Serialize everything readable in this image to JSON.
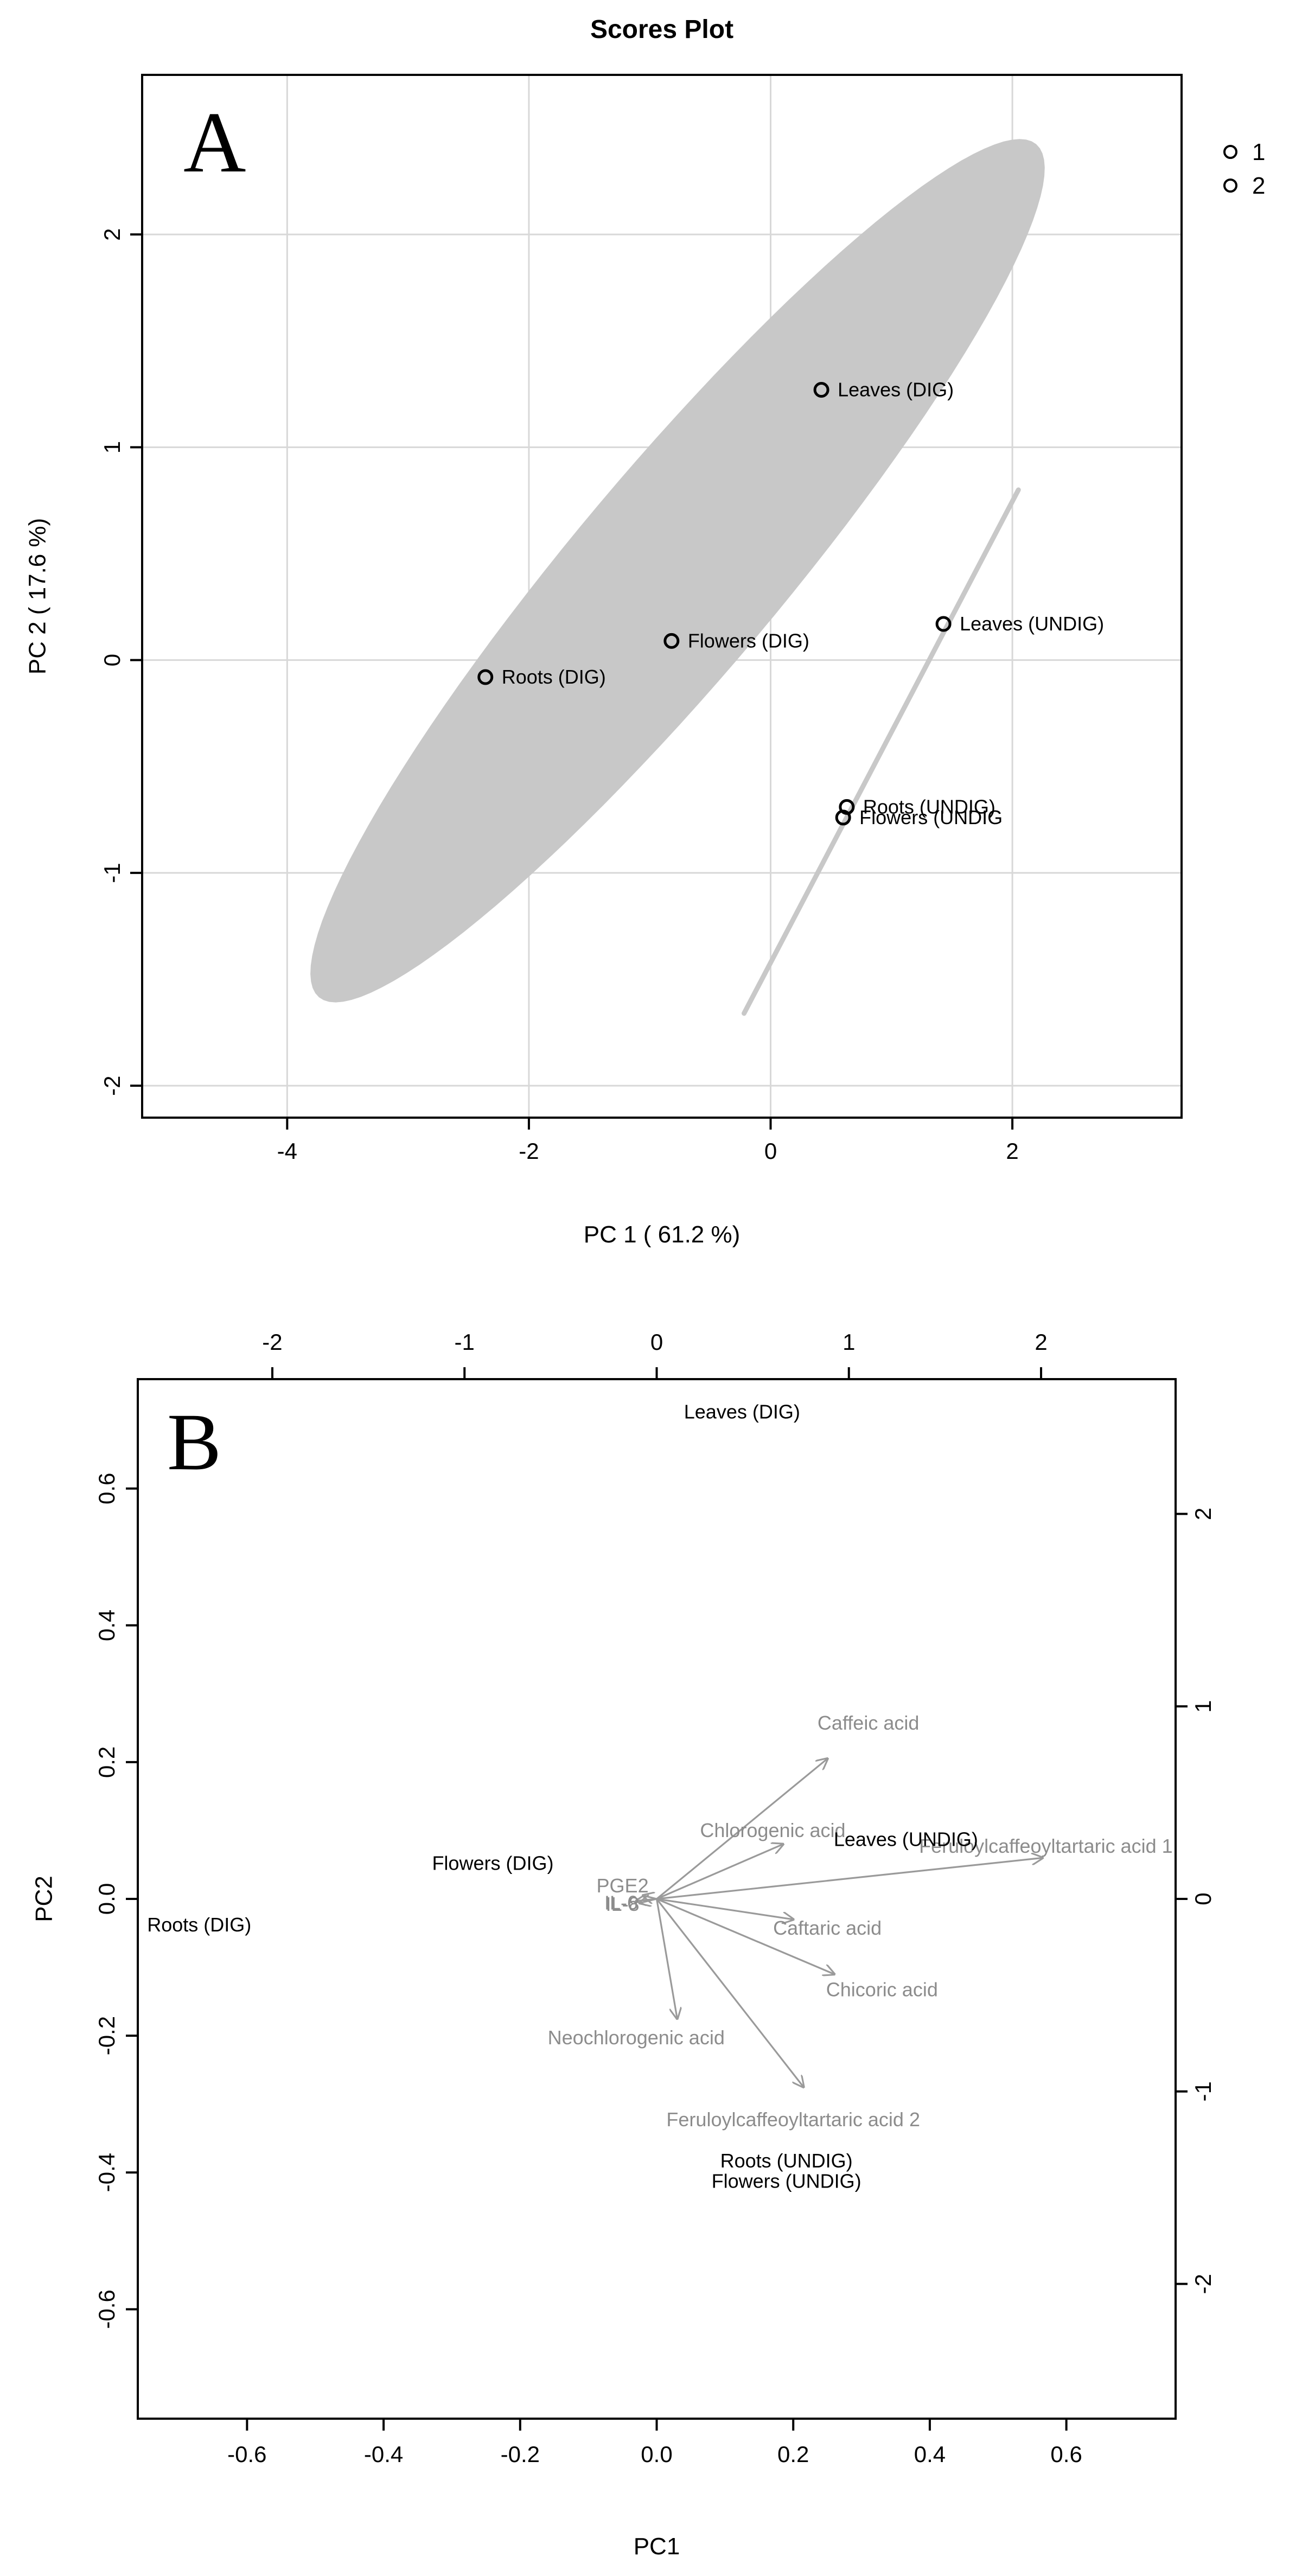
{
  "chart_data": [
    {
      "panel": "A",
      "type": "scatter",
      "title": "Scores Plot",
      "panel_label": "A",
      "xlabel": "PC 1 ( 61.2 %)",
      "ylabel": "PC 2 ( 17.6 %)",
      "xlim": [
        -5.2,
        3.4
      ],
      "ylim": [
        -2.15,
        2.75
      ],
      "xticks": [
        -4,
        -2,
        0,
        2
      ],
      "yticks": [
        -2,
        -1,
        0,
        1,
        2
      ],
      "xtick_labels": [
        "-4",
        "-2",
        "0",
        "2"
      ],
      "ytick_labels": [
        "-2",
        "-1",
        "0",
        "1",
        "2"
      ],
      "grid": true,
      "legend": {
        "position": "top-right",
        "entries": [
          "1",
          "2"
        ]
      },
      "points": [
        {
          "label": "Leaves (DIG)",
          "x": 0.42,
          "y": 1.27,
          "group": "1"
        },
        {
          "label": "Flowers (DIG)",
          "x": -0.82,
          "y": 0.09,
          "group": "1"
        },
        {
          "label": "Roots (DIG)",
          "x": -2.36,
          "y": -0.08,
          "group": "1"
        },
        {
          "label": "Leaves (UNDIG)",
          "x": 1.43,
          "y": 0.17,
          "group": "2"
        },
        {
          "label": "Roots (UNDIG)",
          "x": 0.63,
          "y": -0.69,
          "group": "2"
        },
        {
          "label": "Flowers (UNDIG",
          "x": 0.6,
          "y": -0.74,
          "group": "2"
        }
      ],
      "ellipses": [
        {
          "group": "1",
          "center": [
            -0.77,
            0.42
          ],
          "semi_axis_major": 3.6,
          "semi_axis_minor": 0.62,
          "angle_deg": 33
        },
        {
          "group": "2",
          "from": [
            -0.22,
            -1.66
          ],
          "to": [
            2.05,
            0.8
          ]
        }
      ]
    },
    {
      "panel": "B",
      "type": "biplot",
      "panel_label": "B",
      "xlabel": "PC1",
      "ylabel": "PC2",
      "xlim": [
        -0.76,
        0.76
      ],
      "ylim": [
        -0.76,
        0.76
      ],
      "xticks": [
        -0.6,
        -0.4,
        -0.2,
        0.0,
        0.2,
        0.4,
        0.6
      ],
      "yticks": [
        -0.6,
        -0.4,
        -0.2,
        0.0,
        0.2,
        0.4,
        0.6
      ],
      "xtick_labels": [
        "-0.6",
        "-0.4",
        "-0.2",
        "0.0",
        "0.2",
        "0.4",
        "0.6"
      ],
      "ytick_labels": [
        "-0.6",
        "-0.4",
        "-0.2",
        "0.0",
        "0.2",
        "0.4",
        "0.6"
      ],
      "top_axis": {
        "lim": [
          -2.7,
          2.7
        ],
        "ticks": [
          -2,
          -1,
          0,
          1,
          2
        ],
        "tick_labels": [
          "-2",
          "-1",
          "0",
          "1",
          "2"
        ]
      },
      "right_axis": {
        "lim": [
          -2.7,
          2.7
        ],
        "ticks": [
          -2,
          -1,
          0,
          1,
          2
        ],
        "tick_labels": [
          "-2",
          "-1",
          "0",
          "1",
          "2"
        ]
      },
      "samples": [
        {
          "label": "Leaves (DIG)",
          "x": 0.125,
          "y": 0.71
        },
        {
          "label": "Flowers (DIG)",
          "x": -0.24,
          "y": 0.05
        },
        {
          "label": "Roots (DIG)",
          "x": -0.67,
          "y": -0.04
        },
        {
          "label": "Leaves (UNDIG)",
          "x": 0.365,
          "y": 0.085
        },
        {
          "label": "Roots (UNDIG)",
          "x": 0.19,
          "y": -0.385
        },
        {
          "label": "Flowers (UNDIG)",
          "x": 0.19,
          "y": -0.415
        }
      ],
      "loadings": [
        {
          "label": "Caffeic acid",
          "x": 0.25,
          "y": 0.205,
          "label_x": 0.31,
          "label_y": 0.255
        },
        {
          "label": "Chlorogenic acid",
          "x": 0.185,
          "y": 0.08,
          "label_x": 0.17,
          "label_y": 0.098
        },
        {
          "label": "Feruloylcaffeoyltartaric acid 1",
          "x": 0.565,
          "y": 0.06,
          "label_x": 0.57,
          "label_y": 0.075
        },
        {
          "label": "Caftaric acid",
          "x": 0.2,
          "y": -0.03,
          "label_x": 0.25,
          "label_y": -0.045
        },
        {
          "label": "Chicoric acid",
          "x": 0.26,
          "y": -0.11,
          "label_x": 0.33,
          "label_y": -0.135
        },
        {
          "label": "Neochlorogenic acid",
          "x": 0.03,
          "y": -0.175,
          "label_x": -0.03,
          "label_y": -0.205
        },
        {
          "label": "Feruloylcaffeoyltartaric acid 2",
          "x": 0.215,
          "y": -0.275,
          "label_x": 0.2,
          "label_y": -0.325
        },
        {
          "label": "PGE2",
          "x": -0.02,
          "y": 0.005,
          "label_x": -0.05,
          "label_y": 0.017
        },
        {
          "label": "IL-6",
          "x": -0.03,
          "y": -0.003,
          "label_x": -0.052,
          "label_y": -0.008
        },
        {
          "label": "IL-8",
          "x": -0.025,
          "y": -0.006,
          "label_x": -0.05,
          "label_y": -0.01
        }
      ]
    }
  ],
  "colors": {
    "background": "#ffffff",
    "frame": "#000000",
    "grid": "#d8d8d8",
    "ellipse_fill": "#c8c8c8",
    "arrow": "#9a9a9a",
    "loading_text": "#8c8c8c",
    "sample_text": "#000000"
  }
}
